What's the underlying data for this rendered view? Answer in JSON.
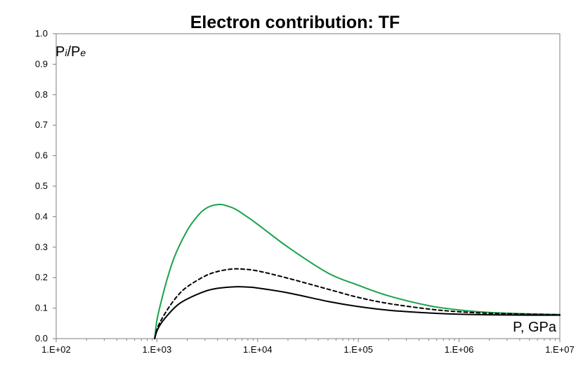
{
  "chart_data": {
    "type": "line",
    "title": "Electron contribution: TF",
    "xlabel": "P, GPa",
    "ylabel": {
      "main": "P",
      "sub1": "i",
      "mid": "/P",
      "sub2": "e"
    },
    "x_scale": "log",
    "xlim": [
      100,
      10000000
    ],
    "ylim": [
      0,
      1.0
    ],
    "x_tick_labels": [
      "1.E+02",
      "1.E+03",
      "1.E+04",
      "1.E+05",
      "1.E+06",
      "1.E+07"
    ],
    "y_tick_labels": [
      "0.0",
      "0.1",
      "0.2",
      "0.3",
      "0.4",
      "0.5",
      "0.6",
      "0.7",
      "0.8",
      "0.9",
      "1.0"
    ],
    "grid": false,
    "series": [
      {
        "style": "solid",
        "color": "#1aa34a",
        "points": [
          [
            950,
            0.0
          ],
          [
            1000,
            0.06
          ],
          [
            1100,
            0.12
          ],
          [
            1250,
            0.19
          ],
          [
            1500,
            0.27
          ],
          [
            2000,
            0.355
          ],
          [
            2500,
            0.4
          ],
          [
            3000,
            0.425
          ],
          [
            3600,
            0.437
          ],
          [
            4300,
            0.44
          ],
          [
            5000,
            0.435
          ],
          [
            6000,
            0.425
          ],
          [
            8000,
            0.398
          ],
          [
            10000,
            0.375
          ],
          [
            20000,
            0.3
          ],
          [
            50000,
            0.215
          ],
          [
            100000,
            0.175
          ],
          [
            200000,
            0.14
          ],
          [
            500000,
            0.108
          ],
          [
            1000000,
            0.094
          ],
          [
            2000000,
            0.086
          ],
          [
            5000000,
            0.081
          ],
          [
            10000000,
            0.079
          ]
        ]
      },
      {
        "style": "dashed",
        "color": "#000000",
        "points": [
          [
            950,
            0.0
          ],
          [
            1000,
            0.03
          ],
          [
            1100,
            0.06
          ],
          [
            1300,
            0.1
          ],
          [
            1600,
            0.14
          ],
          [
            2000,
            0.17
          ],
          [
            3000,
            0.205
          ],
          [
            4000,
            0.22
          ],
          [
            5500,
            0.228
          ],
          [
            7000,
            0.228
          ],
          [
            10000,
            0.222
          ],
          [
            20000,
            0.198
          ],
          [
            50000,
            0.162
          ],
          [
            100000,
            0.135
          ],
          [
            200000,
            0.115
          ],
          [
            500000,
            0.097
          ],
          [
            1000000,
            0.088
          ],
          [
            2000000,
            0.083
          ],
          [
            5000000,
            0.08
          ],
          [
            10000000,
            0.078
          ]
        ]
      },
      {
        "style": "solid",
        "color": "#000000",
        "points": [
          [
            950,
            0.0
          ],
          [
            1000,
            0.025
          ],
          [
            1100,
            0.05
          ],
          [
            1300,
            0.08
          ],
          [
            1600,
            0.11
          ],
          [
            2000,
            0.13
          ],
          [
            3000,
            0.155
          ],
          [
            4000,
            0.165
          ],
          [
            6000,
            0.17
          ],
          [
            8000,
            0.169
          ],
          [
            10000,
            0.166
          ],
          [
            20000,
            0.15
          ],
          [
            50000,
            0.122
          ],
          [
            100000,
            0.105
          ],
          [
            200000,
            0.093
          ],
          [
            500000,
            0.084
          ],
          [
            1000000,
            0.08
          ],
          [
            2000000,
            0.078
          ],
          [
            5000000,
            0.077
          ],
          [
            10000000,
            0.077
          ]
        ]
      }
    ]
  }
}
